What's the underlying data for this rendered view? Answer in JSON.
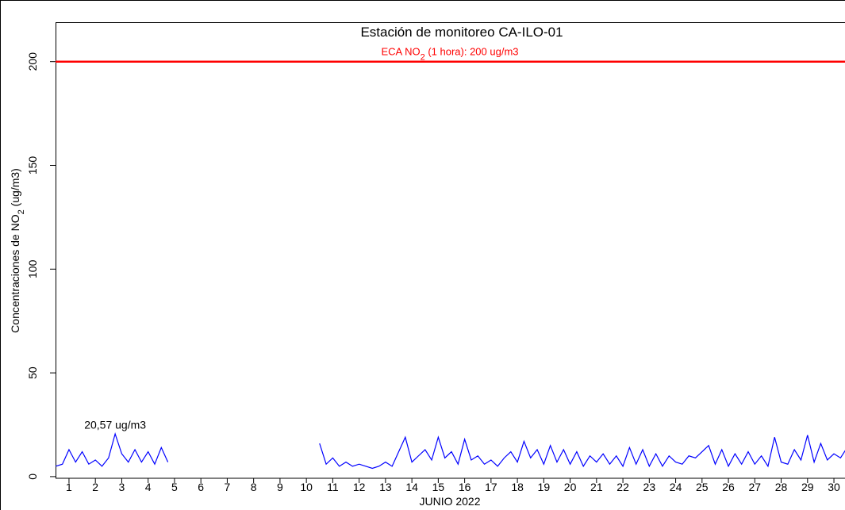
{
  "chart_data": {
    "type": "line",
    "title": "Estación de monitoreo  CA-ILO-01",
    "x_label": "JUNIO 2022",
    "y_label_parts": [
      "Concentraciones de NO",
      "2",
      " (ug/m3)"
    ],
    "hline": {
      "value": 200,
      "color": "#ff0000",
      "label_parts": [
        "ECA NO",
        "2",
        " (1 hora): 200 ug/m3"
      ]
    },
    "annotation": {
      "text": "20,57 ug/m3",
      "x": 2.75,
      "y": 23
    },
    "xlim": [
      0.49,
      30.42
    ],
    "ylim": [
      -0.8,
      219
    ],
    "xticks": [
      1,
      2,
      3,
      4,
      5,
      6,
      7,
      8,
      9,
      10,
      11,
      12,
      13,
      14,
      15,
      16,
      17,
      18,
      19,
      20,
      21,
      22,
      23,
      24,
      25,
      26,
      27,
      28,
      29,
      30
    ],
    "yticks": [
      0,
      50,
      100,
      150,
      200
    ],
    "x": [
      0.5,
      0.75,
      1,
      1.25,
      1.5,
      1.75,
      2,
      2.25,
      2.5,
      2.75,
      3,
      3.25,
      3.5,
      3.75,
      4,
      4.25,
      4.5,
      4.75,
      7.5,
      10.5,
      10.75,
      11,
      11.25,
      11.5,
      11.75,
      12,
      12.25,
      12.5,
      12.75,
      13,
      13.25,
      13.5,
      13.75,
      14,
      14.25,
      14.5,
      14.75,
      15,
      15.25,
      15.5,
      15.75,
      16,
      16.25,
      16.5,
      16.75,
      17,
      17.25,
      17.5,
      17.75,
      18,
      18.25,
      18.5,
      18.75,
      19,
      19.25,
      19.5,
      19.75,
      20,
      20.25,
      20.5,
      20.75,
      21,
      21.25,
      21.5,
      21.75,
      22,
      22.25,
      22.5,
      22.75,
      23,
      23.25,
      23.5,
      23.75,
      24,
      24.25,
      24.5,
      24.75,
      25,
      25.25,
      25.5,
      25.75,
      26,
      26.25,
      26.5,
      26.75,
      27,
      27.25,
      27.5,
      27.75,
      28,
      28.25,
      28.5,
      28.75,
      29,
      29.25,
      29.5,
      29.75,
      30,
      30.25,
      30.5
    ],
    "series": [
      {
        "name": "NO2",
        "color": "#0000ff",
        "values": [
          5,
          6,
          13,
          7,
          12,
          6,
          8,
          5,
          9,
          20.57,
          11,
          7,
          13,
          7,
          12,
          6,
          14,
          7,
          null,
          16,
          6,
          9,
          5,
          7,
          5,
          6,
          5,
          4,
          5,
          7,
          5,
          12,
          19,
          7,
          10,
          13,
          8,
          19,
          9,
          12,
          6,
          18,
          8,
          10,
          6,
          8,
          5,
          9,
          12,
          7,
          17,
          9,
          13,
          6,
          15,
          7,
          13,
          6,
          12,
          5,
          10,
          7,
          11,
          6,
          10,
          5,
          14,
          6,
          13,
          5,
          11,
          5,
          10,
          7,
          6,
          10,
          9,
          12,
          15,
          6,
          13,
          5,
          11,
          6,
          12,
          6,
          10,
          5,
          19,
          7,
          6,
          13,
          8,
          20,
          7,
          16,
          8,
          11,
          9,
          14
        ]
      }
    ]
  }
}
